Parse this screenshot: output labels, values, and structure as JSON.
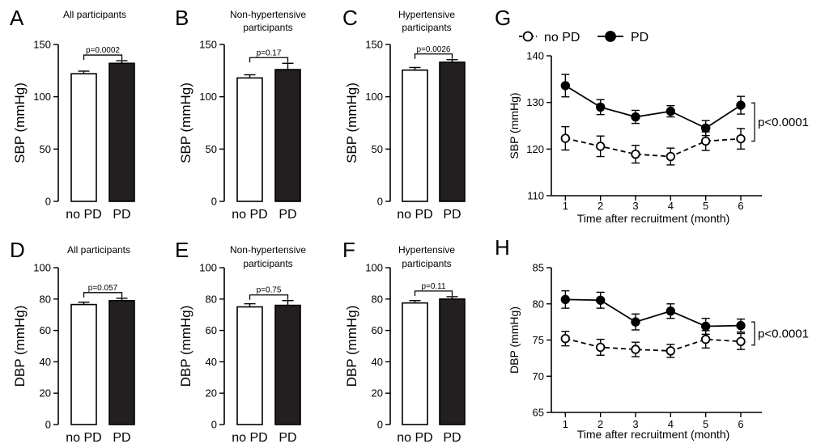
{
  "legend": {
    "series": [
      {
        "name": "no PD",
        "marker": "open-circle",
        "line": "dashed"
      },
      {
        "name": "PD",
        "marker": "filled-circle",
        "line": "solid"
      }
    ]
  },
  "chart_data": [
    {
      "panel": "A",
      "type": "bar",
      "title": "All participants",
      "categories": [
        "no PD",
        "PD"
      ],
      "values": [
        122,
        132
      ],
      "errors": [
        2.5,
        2.5
      ],
      "colors": [
        "#ffffff",
        "#231f20"
      ],
      "ylabel": "SBP (mmHg)",
      "ylim": [
        0,
        150
      ],
      "yticks": [
        0,
        50,
        100,
        150
      ],
      "pvalue": "p=0.0002"
    },
    {
      "panel": "B",
      "type": "bar",
      "title": "Non-hypertensive participants",
      "categories": [
        "no PD",
        "PD"
      ],
      "values": [
        118,
        126
      ],
      "errors": [
        3,
        6
      ],
      "colors": [
        "#ffffff",
        "#231f20"
      ],
      "ylabel": "SBP (mmHg)",
      "ylim": [
        0,
        150
      ],
      "yticks": [
        0,
        50,
        100,
        150
      ],
      "pvalue": "p=0.17"
    },
    {
      "panel": "C",
      "type": "bar",
      "title": "Hypertensive participants",
      "categories": [
        "no PD",
        "PD"
      ],
      "values": [
        125.5,
        133
      ],
      "errors": [
        2.5,
        2.5
      ],
      "colors": [
        "#ffffff",
        "#231f20"
      ],
      "ylabel": "SBP (mmHg)",
      "ylim": [
        0,
        150
      ],
      "yticks": [
        0,
        50,
        100,
        150
      ],
      "pvalue": "p=0.0026"
    },
    {
      "panel": "D",
      "type": "bar",
      "title": "All participants",
      "categories": [
        "no PD",
        "PD"
      ],
      "values": [
        76.5,
        79
      ],
      "errors": [
        1.5,
        1.5
      ],
      "colors": [
        "#ffffff",
        "#231f20"
      ],
      "ylabel": "DBP (mmHg)",
      "ylim": [
        0,
        100
      ],
      "yticks": [
        0,
        20,
        40,
        60,
        80,
        100
      ],
      "pvalue": "p=0.057"
    },
    {
      "panel": "E",
      "type": "bar",
      "title": "Non-hypertensive participants",
      "categories": [
        "no PD",
        "PD"
      ],
      "values": [
        75,
        76
      ],
      "errors": [
        2,
        3
      ],
      "colors": [
        "#ffffff",
        "#231f20"
      ],
      "ylabel": "DBP (mmHg)",
      "ylim": [
        0,
        100
      ],
      "yticks": [
        0,
        20,
        40,
        60,
        80,
        100
      ],
      "pvalue": "p=0.75"
    },
    {
      "panel": "F",
      "type": "bar",
      "title": "Hypertensive participants",
      "categories": [
        "no PD",
        "PD"
      ],
      "values": [
        77.5,
        80
      ],
      "errors": [
        1.5,
        1.5
      ],
      "colors": [
        "#ffffff",
        "#231f20"
      ],
      "ylabel": "DBP (mmHg)",
      "ylim": [
        0,
        100
      ],
      "yticks": [
        0,
        20,
        40,
        60,
        80,
        100
      ],
      "pvalue": "p=0.11"
    },
    {
      "panel": "G",
      "type": "line",
      "x": [
        1,
        2,
        3,
        4,
        5,
        6
      ],
      "series": [
        {
          "name": "no PD",
          "values": [
            122.3,
            120.6,
            118.9,
            118.4,
            121.7,
            122.2
          ],
          "errors": [
            2.5,
            2.2,
            1.9,
            1.8,
            2.0,
            2.2
          ]
        },
        {
          "name": "PD",
          "values": [
            133.6,
            129.0,
            126.9,
            128.1,
            124.5,
            129.4
          ],
          "errors": [
            2.4,
            1.6,
            1.4,
            1.2,
            1.6,
            1.9
          ]
        }
      ],
      "xlabel": "Time after recruitment (month)",
      "ylabel": "SBP (mmHg)",
      "xlim": [
        0.6,
        6.6
      ],
      "ylim": [
        110,
        140
      ],
      "yticks": [
        110,
        120,
        130,
        140
      ],
      "pvalue": "p<0.0001"
    },
    {
      "panel": "H",
      "type": "line",
      "x": [
        1,
        2,
        3,
        4,
        5,
        6
      ],
      "series": [
        {
          "name": "no PD",
          "values": [
            75.2,
            74.0,
            73.7,
            73.5,
            75.1,
            74.8
          ],
          "errors": [
            1.0,
            1.1,
            1.0,
            0.9,
            1.2,
            1.1
          ]
        },
        {
          "name": "PD",
          "values": [
            80.6,
            80.5,
            77.5,
            79.0,
            76.9,
            77.0
          ],
          "errors": [
            1.2,
            1.1,
            1.1,
            1.0,
            1.1,
            0.9
          ]
        }
      ],
      "xlabel": "Time after recruitment (month)",
      "ylabel": "DBP (mmHg)",
      "xlim": [
        0.6,
        6.6
      ],
      "ylim": [
        65,
        85
      ],
      "yticks": [
        65,
        70,
        75,
        80,
        85
      ],
      "pvalue": "p<0.0001"
    }
  ]
}
